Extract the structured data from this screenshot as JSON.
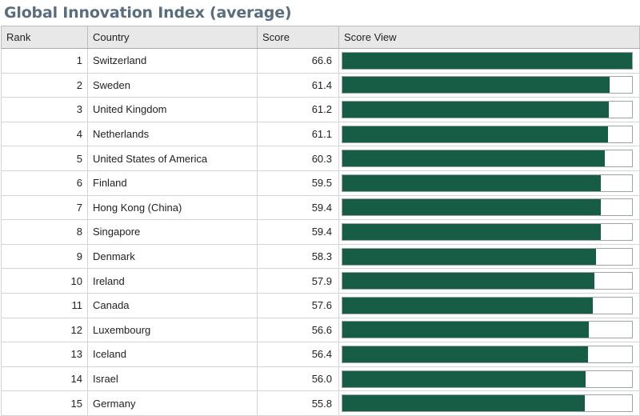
{
  "title": "Global Innovation Index (average)",
  "columns": {
    "rank": "Rank",
    "country": "Country",
    "score": "Score",
    "view": "Score View"
  },
  "colors": {
    "bar": "#175d45",
    "title": "#5a6d7e"
  },
  "chart_data": {
    "type": "bar",
    "orientation": "horizontal",
    "title": "Global Innovation Index (average)",
    "xlim": [
      0,
      66.6
    ],
    "rows": [
      {
        "rank": "1",
        "country": "Switzerland",
        "score": "66.6"
      },
      {
        "rank": "2",
        "country": "Sweden",
        "score": "61.4"
      },
      {
        "rank": "3",
        "country": "United Kingdom",
        "score": "61.2"
      },
      {
        "rank": "4",
        "country": "Netherlands",
        "score": "61.1"
      },
      {
        "rank": "5",
        "country": "United States of America",
        "score": "60.3"
      },
      {
        "rank": "6",
        "country": "Finland",
        "score": "59.5"
      },
      {
        "rank": "7",
        "country": "Hong Kong (China)",
        "score": "59.4"
      },
      {
        "rank": "8",
        "country": "Singapore",
        "score": "59.4"
      },
      {
        "rank": "9",
        "country": "Denmark",
        "score": "58.3"
      },
      {
        "rank": "10",
        "country": "Ireland",
        "score": "57.9"
      },
      {
        "rank": "11",
        "country": "Canada",
        "score": "57.6"
      },
      {
        "rank": "12",
        "country": "Luxembourg",
        "score": "56.6"
      },
      {
        "rank": "13",
        "country": "Iceland",
        "score": "56.4"
      },
      {
        "rank": "14",
        "country": "Israel",
        "score": "56.0"
      },
      {
        "rank": "15",
        "country": "Germany",
        "score": "55.8"
      }
    ]
  }
}
